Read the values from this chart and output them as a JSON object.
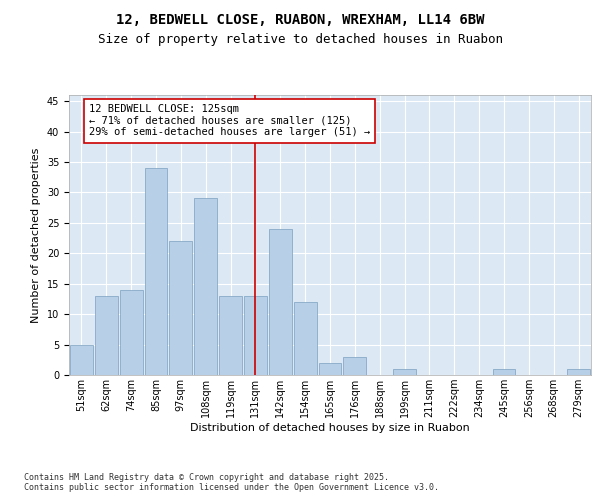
{
  "title_line1": "12, BEDWELL CLOSE, RUABON, WREXHAM, LL14 6BW",
  "title_line2": "Size of property relative to detached houses in Ruabon",
  "xlabel": "Distribution of detached houses by size in Ruabon",
  "ylabel": "Number of detached properties",
  "categories": [
    "51sqm",
    "62sqm",
    "74sqm",
    "85sqm",
    "97sqm",
    "108sqm",
    "119sqm",
    "131sqm",
    "142sqm",
    "154sqm",
    "165sqm",
    "176sqm",
    "188sqm",
    "199sqm",
    "211sqm",
    "222sqm",
    "234sqm",
    "245sqm",
    "256sqm",
    "268sqm",
    "279sqm"
  ],
  "values": [
    5,
    13,
    14,
    34,
    22,
    29,
    13,
    13,
    24,
    12,
    2,
    3,
    0,
    1,
    0,
    0,
    0,
    1,
    0,
    0,
    1
  ],
  "bar_color": "#b8cfe8",
  "bar_edge_color": "#7a9fc0",
  "vline_x": 7,
  "vline_color": "#cc0000",
  "annotation_text": "12 BEDWELL CLOSE: 125sqm\n← 71% of detached houses are smaller (125)\n29% of semi-detached houses are larger (51) →",
  "annotation_box_color": "#ffffff",
  "annotation_box_edge_color": "#cc0000",
  "ylim": [
    0,
    46
  ],
  "yticks": [
    0,
    5,
    10,
    15,
    20,
    25,
    30,
    35,
    40,
    45
  ],
  "background_color": "#dce9f5",
  "fig_background_color": "#ffffff",
  "footer_text": "Contains HM Land Registry data © Crown copyright and database right 2025.\nContains public sector information licensed under the Open Government Licence v3.0.",
  "title_fontsize": 10,
  "subtitle_fontsize": 9,
  "axis_label_fontsize": 8,
  "tick_fontsize": 7,
  "annotation_fontsize": 7.5,
  "footer_fontsize": 6
}
